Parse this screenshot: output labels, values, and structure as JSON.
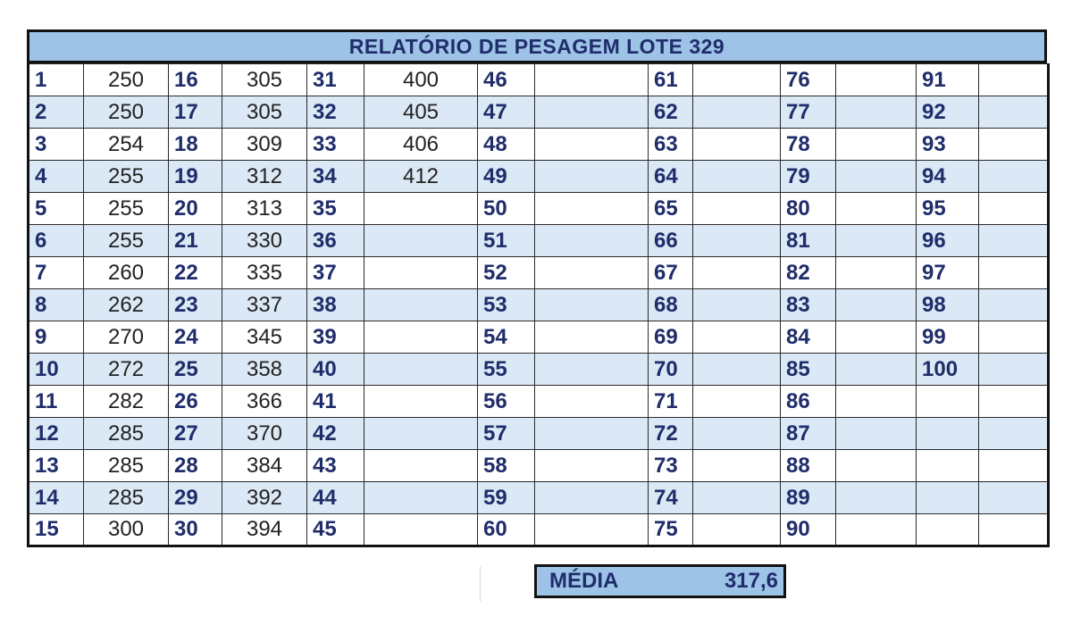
{
  "title": "RELATÓRIO DE PESAGEM LOTE 329",
  "summary": {
    "label": "MÉDIA",
    "value": "317,6"
  },
  "columns": [
    {
      "numbers": [
        "1",
        "2",
        "3",
        "4",
        "5",
        "6",
        "7",
        "8",
        "9",
        "10",
        "11",
        "12",
        "13",
        "14",
        "15"
      ],
      "values": [
        "250",
        "250",
        "254",
        "255",
        "255",
        "255",
        "260",
        "262",
        "270",
        "272",
        "282",
        "285",
        "285",
        "285",
        "300"
      ]
    },
    {
      "numbers": [
        "16",
        "17",
        "18",
        "19",
        "20",
        "21",
        "22",
        "23",
        "24",
        "25",
        "26",
        "27",
        "28",
        "29",
        "30"
      ],
      "values": [
        "305",
        "305",
        "309",
        "312",
        "313",
        "330",
        "335",
        "337",
        "345",
        "358",
        "366",
        "370",
        "384",
        "392",
        "394"
      ]
    },
    {
      "numbers": [
        "31",
        "32",
        "33",
        "34",
        "35",
        "36",
        "37",
        "38",
        "39",
        "40",
        "41",
        "42",
        "43",
        "44",
        "45"
      ],
      "values": [
        "400",
        "405",
        "406",
        "412",
        "",
        "",
        "",
        "",
        "",
        "",
        "",
        "",
        "",
        "",
        ""
      ]
    },
    {
      "numbers": [
        "46",
        "47",
        "48",
        "49",
        "50",
        "51",
        "52",
        "53",
        "54",
        "55",
        "56",
        "57",
        "58",
        "59",
        "60"
      ],
      "values": [
        "",
        "",
        "",
        "",
        "",
        "",
        "",
        "",
        "",
        "",
        "",
        "",
        "",
        "",
        ""
      ]
    },
    {
      "numbers": [
        "61",
        "62",
        "63",
        "64",
        "65",
        "66",
        "67",
        "68",
        "69",
        "70",
        "71",
        "72",
        "73",
        "74",
        "75"
      ],
      "values": [
        "",
        "",
        "",
        "",
        "",
        "",
        "",
        "",
        "",
        "",
        "",
        "",
        "",
        "",
        ""
      ]
    },
    {
      "numbers": [
        "76",
        "77",
        "78",
        "79",
        "80",
        "81",
        "82",
        "83",
        "84",
        "85",
        "86",
        "87",
        "88",
        "89",
        "90"
      ],
      "values": [
        "",
        "",
        "",
        "",
        "",
        "",
        "",
        "",
        "",
        "",
        "",
        "",
        "",
        "",
        ""
      ]
    },
    {
      "numbers": [
        "91",
        "92",
        "93",
        "94",
        "95",
        "96",
        "97",
        "98",
        "99",
        "100",
        "",
        "",
        "",
        "",
        ""
      ],
      "values": [
        "",
        "",
        "",
        "",
        "",
        "",
        "",
        "",
        "",
        "",
        "",
        "",
        "",
        "",
        ""
      ]
    }
  ]
}
